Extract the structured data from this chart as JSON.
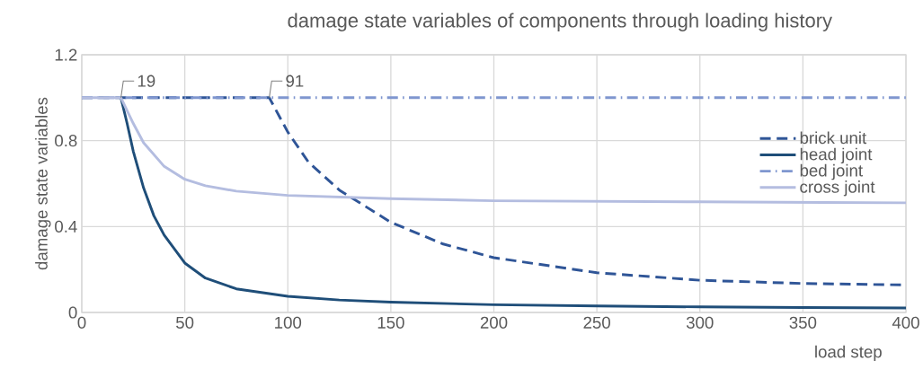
{
  "chart_data": {
    "type": "line",
    "title": "damage state variables of components through loading history",
    "xlabel": "load step",
    "ylabel": "damage state variables",
    "series": [
      {
        "name": "brick unit",
        "color": "#2f5597",
        "line_style": "dashed",
        "x": [
          0,
          91,
          100,
          110,
          125,
          150,
          175,
          200,
          250,
          300,
          350,
          400
        ],
        "values": [
          1,
          1,
          0.84,
          0.7,
          0.57,
          0.42,
          0.32,
          0.255,
          0.185,
          0.15,
          0.135,
          0.128
        ]
      },
      {
        "name": "head joint",
        "color": "#1f4e79",
        "line_style": "solid",
        "x": [
          19,
          22,
          25,
          30,
          35,
          40,
          50,
          60,
          75,
          100,
          125,
          150,
          200,
          250,
          300,
          350,
          400
        ],
        "values": [
          1,
          0.88,
          0.75,
          0.58,
          0.45,
          0.36,
          0.23,
          0.16,
          0.11,
          0.075,
          0.058,
          0.048,
          0.036,
          0.03,
          0.026,
          0.023,
          0.021
        ]
      },
      {
        "name": "bed joint",
        "color": "#7f96cf",
        "line_style": "dashdot",
        "x": [
          0,
          400
        ],
        "values": [
          1,
          1
        ]
      },
      {
        "name": "cross joint",
        "color": "#b4bde0",
        "line_style": "solid",
        "x": [
          0,
          19,
          25,
          30,
          40,
          50,
          60,
          75,
          100,
          150,
          200,
          300,
          400
        ],
        "values": [
          1,
          1,
          0.88,
          0.79,
          0.68,
          0.62,
          0.59,
          0.565,
          0.545,
          0.53,
          0.52,
          0.515,
          0.51
        ]
      }
    ],
    "annotations": [
      {
        "text": "19",
        "x": 19,
        "y": 1
      },
      {
        "text": "91",
        "x": 91,
        "y": 1
      }
    ],
    "xlim": [
      0,
      400
    ],
    "ylim": [
      0,
      1.2
    ],
    "xticks": [
      0,
      50,
      100,
      150,
      200,
      250,
      300,
      350,
      400
    ],
    "yticks": [
      0,
      0.4,
      0.8,
      1.2
    ],
    "grid": true,
    "legend": "right",
    "marker": "none"
  }
}
